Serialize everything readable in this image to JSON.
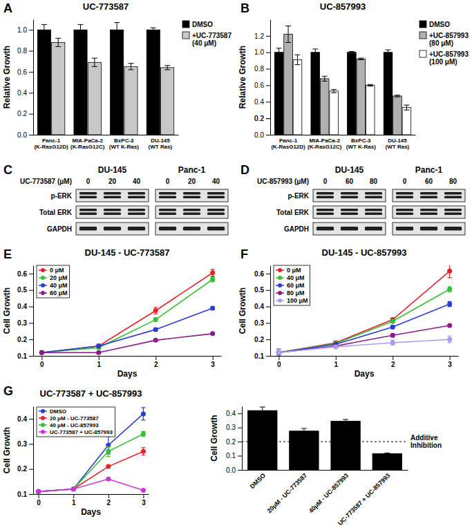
{
  "chart_data": [
    {
      "type": "bar",
      "panel": "A",
      "title": "UC-773587",
      "y_label": "Relative Growth",
      "categories": [
        "Panc-1\n(K-RasG12D)",
        "MIA-PaCa-2\n(K-RasG12C)",
        "BxPC-3\n(WT K-Ras)",
        "DU-145\n(WT Ras)"
      ],
      "series": [
        {
          "name": "DMSO",
          "color": "#000000",
          "values": [
            1.0,
            1.0,
            1.0,
            1.0
          ],
          "errors": [
            0.05,
            0.05,
            0.07,
            0.02
          ]
        },
        {
          "name": "+UC-773587\n(40 μM)",
          "color": "#c8c8c8",
          "values": [
            0.88,
            0.69,
            0.65,
            0.64
          ],
          "errors": [
            0.04,
            0.04,
            0.03,
            0.02
          ]
        }
      ],
      "ylim": [
        0,
        1.1
      ],
      "yticks": [
        {
          "value": 0,
          "label": "0.0"
        },
        0.2,
        0.4,
        0.6,
        0.8,
        {
          "value": 1,
          "label": "1.0"
        }
      ],
      "legend": "right"
    },
    {
      "type": "bar",
      "panel": "B",
      "title": "UC-857993",
      "y_label": "Relative Growth",
      "categories": [
        "Panc-1\n(K-RasG12D)",
        "MIA-PaCa-2\n(K-RasG12C)",
        "BxPC-3\n(WT K-Ras)",
        "DU-145\n(WT Ras)"
      ],
      "series": [
        {
          "name": "DMSO",
          "color": "#000000",
          "values": [
            1.0,
            1.0,
            1.0,
            1.0
          ],
          "errors": [
            0.05,
            0.04,
            0.01,
            0.03
          ]
        },
        {
          "name": "+UC-857993\n(80 μM)",
          "color": "#b0b0b0",
          "values": [
            1.22,
            0.68,
            0.92,
            0.47
          ],
          "errors": [
            0.1,
            0.03,
            0.01,
            0.01
          ]
        },
        {
          "name": "+UC-857993\n(100 μM)",
          "color": "#ffffff",
          "values": [
            0.91,
            0.53,
            0.6,
            0.33
          ],
          "errors": [
            0.06,
            0.02,
            0.01,
            0.03
          ]
        }
      ],
      "ylim": [
        0,
        1.4
      ],
      "yticks": [
        {
          "value": 0,
          "label": "0.0"
        },
        0.2,
        0.4,
        0.6,
        0.8,
        {
          "value": 1,
          "label": "1.0"
        },
        0.2,
        1.2
      ],
      "legend": "right"
    },
    {
      "type": "line",
      "panel": "E",
      "title": "DU-145 - UC-773587",
      "x_label": "Days",
      "y_label": "Cell Growth",
      "x": [
        0,
        1,
        2,
        3
      ],
      "xlim": [
        -0.15,
        3.15
      ],
      "xticks": [
        0,
        1,
        2,
        3
      ],
      "ylim": [
        0.1,
        0.65
      ],
      "yticks": [
        0.1,
        0.2,
        0.3,
        0.4,
        0.5,
        0.6
      ],
      "marker": "circle",
      "legend": "top-left",
      "series": [
        {
          "name": "0 μM",
          "color": "#e8202a",
          "values": [
            0.12,
            0.16,
            0.375,
            0.605
          ],
          "errors": [
            0.005,
            0.01,
            0.02,
            0.02
          ]
        },
        {
          "name": "20 μM",
          "color": "#33c233",
          "values": [
            0.12,
            0.15,
            0.32,
            0.565
          ],
          "errors": [
            0.005,
            0.01,
            0.01,
            0.015
          ]
        },
        {
          "name": "40 μM",
          "color": "#2b3bd6",
          "values": [
            0.12,
            0.16,
            0.26,
            0.39
          ],
          "errors": [
            0.005,
            0.01,
            0.01,
            0.01
          ]
        },
        {
          "name": "60 μM",
          "color": "#8b1a8b",
          "values": [
            0.12,
            0.12,
            0.195,
            0.235
          ],
          "errors": [
            0.005,
            0.005,
            0.005,
            0.005
          ]
        }
      ]
    },
    {
      "type": "line",
      "panel": "F",
      "title": "DU-145 - UC-857993",
      "x_label": "Days",
      "y_label": "Cell Growth",
      "x": [
        0,
        1,
        2,
        3
      ],
      "xlim": [
        -0.15,
        3.15
      ],
      "xticks": [
        0,
        1,
        2,
        3
      ],
      "ylim": [
        0.1,
        0.65
      ],
      "yticks": [
        0.1,
        0.2,
        0.3,
        0.4,
        0.5,
        0.6
      ],
      "marker": "circle",
      "legend": "top-left",
      "series": [
        {
          "name": "0 μM",
          "color": "#e8202a",
          "values": [
            0.12,
            0.18,
            0.32,
            0.615
          ],
          "errors": [
            0.02,
            0.01,
            0.01,
            0.04
          ]
        },
        {
          "name": "40 μM",
          "color": "#33c233",
          "values": [
            0.12,
            0.175,
            0.31,
            0.505
          ],
          "errors": [
            0.02,
            0.01,
            0.01,
            0.015
          ]
        },
        {
          "name": "60 μM",
          "color": "#2b3bd6",
          "values": [
            0.12,
            0.17,
            0.275,
            0.415
          ],
          "errors": [
            0.02,
            0.01,
            0.01,
            0.015
          ]
        },
        {
          "name": "80 μM",
          "color": "#8b1a8b",
          "values": [
            0.12,
            0.16,
            0.225,
            0.285
          ],
          "errors": [
            0.02,
            0.01,
            0.01,
            0.005
          ]
        },
        {
          "name": "100 μM",
          "color": "#a99cf0",
          "values": [
            0.12,
            0.155,
            0.18,
            0.2
          ],
          "errors": [
            0.02,
            0.01,
            0.015,
            0.02
          ]
        }
      ]
    },
    {
      "type": "line",
      "panel": "G",
      "title": "UC-773587 + UC-857993",
      "x_label": "Days",
      "y_label": "Cell Growth",
      "x": [
        0,
        1,
        2,
        3
      ],
      "xlim": [
        -0.15,
        3.15
      ],
      "xticks": [
        0,
        1,
        2,
        3
      ],
      "ylim": [
        0.1,
        0.45
      ],
      "yticks": [
        0.1,
        0.2,
        0.3,
        0.4
      ],
      "marker": "circle",
      "legend": "top-left",
      "series": [
        {
          "name": "DMSO",
          "color": "#2b3bd6",
          "values": [
            0.11,
            0.12,
            0.295,
            0.42
          ],
          "errors": [
            0.003,
            0.005,
            0.035,
            0.025
          ]
        },
        {
          "name": "20 μM - UC-773587",
          "color": "#e8202a",
          "values": [
            0.11,
            0.12,
            0.21,
            0.27
          ],
          "errors": [
            0.003,
            0.005,
            0.005,
            0.015
          ]
        },
        {
          "name": "40 μM - UC-857993",
          "color": "#33c233",
          "values": [
            0.11,
            0.12,
            0.27,
            0.34
          ],
          "errors": [
            0.003,
            0.005,
            0.02,
            0.01
          ]
        },
        {
          "name": "UC-773587 + UC-857993",
          "color": "#cc33dd",
          "values": [
            0.11,
            0.12,
            0.16,
            0.115
          ],
          "errors": [
            0.003,
            0.005,
            0.005,
            0.003
          ]
        }
      ]
    },
    {
      "type": "bar",
      "y_label": "Cell Growth",
      "categories": [
        "DMSO",
        "20μM - UC-773587",
        "40μM - UC-857993",
        "UC-773587 + UC-857993"
      ],
      "values": [
        0.42,
        0.275,
        0.345,
        0.115
      ],
      "errors": [
        0.025,
        0.018,
        0.012,
        0.004
      ],
      "color": "#000000",
      "ylim": [
        0,
        0.45
      ],
      "yticks": [
        {
          "value": 0,
          "label": "0.0"
        },
        0.1,
        0.2,
        0.3,
        0.4
      ],
      "annotations": [
        {
          "value": 0.2,
          "label": "Additive\nInhibition"
        }
      ]
    }
  ],
  "blots": [
    {
      "panel": "C",
      "treatment": "UC-773587 (μM)",
      "groups": [
        {
          "cell_line": "DU-145",
          "doses": [
            0,
            20,
            40
          ]
        },
        {
          "cell_line": "Panc-1",
          "doses": [
            0,
            20,
            40
          ]
        }
      ],
      "rows": [
        "p-ERK",
        "Total ERK",
        "GAPDH"
      ]
    },
    {
      "panel": "D",
      "treatment": "UC-857993 (μM)",
      "groups": [
        {
          "cell_line": "DU-145",
          "doses": [
            0,
            60,
            80
          ]
        },
        {
          "cell_line": "Panc-1",
          "doses": [
            0,
            60,
            80
          ]
        }
      ],
      "rows": [
        "p-ERK",
        "Total ERK",
        "GAPDH"
      ]
    }
  ]
}
